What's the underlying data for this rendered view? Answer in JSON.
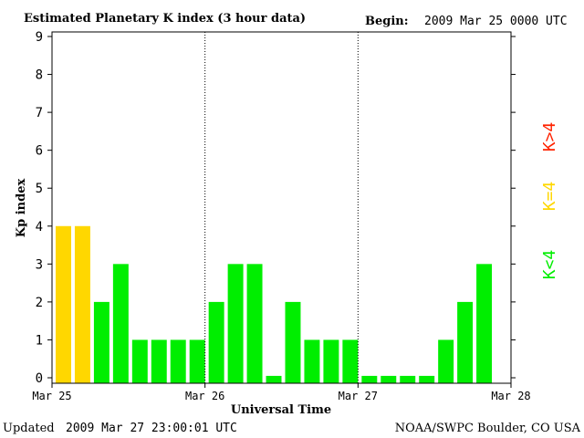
{
  "header": {
    "title": "Estimated Planetary K index (3 hour data)",
    "begin_label": "Begin:",
    "begin_value": "2009 Mar 25 0000 UTC"
  },
  "footer": {
    "updated_label": "Updated",
    "updated_value": "2009 Mar 27 23:00:01 UTC",
    "credit": "NOAA/SWPC Boulder, CO USA"
  },
  "legend": {
    "above": "K>4",
    "equal": "K=4",
    "below": "K<4"
  },
  "colors": {
    "above": "#ff2200",
    "equal": "#ffd700",
    "below": "#00ee00",
    "axis": "#000000",
    "day_divider": "#000000"
  },
  "chart_data": {
    "type": "bar",
    "xlabel": "Universal Time",
    "ylabel": "Kp index",
    "ylim": [
      0,
      9
    ],
    "yticks": [
      "0",
      "1",
      "2",
      "3",
      "4",
      "5",
      "6",
      "7",
      "8",
      "9"
    ],
    "xticks": [
      "Mar 25",
      "Mar 26",
      "Mar 27",
      "Mar 28"
    ],
    "bars_per_day": 8,
    "grid": false,
    "values": [
      4,
      4,
      2,
      3,
      1,
      1,
      1,
      1,
      2,
      3,
      3,
      0,
      2,
      1,
      1,
      1,
      0,
      0,
      0,
      0,
      1,
      2,
      3
    ],
    "baseline_value": 0.05
  }
}
